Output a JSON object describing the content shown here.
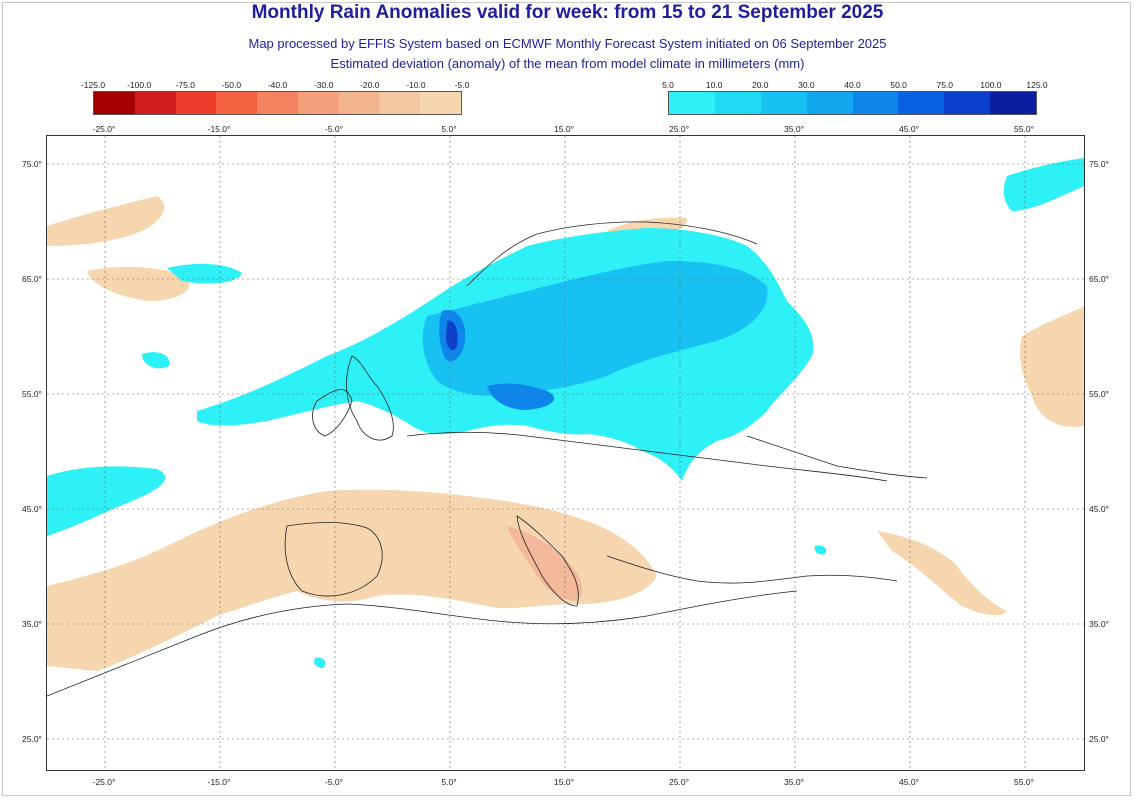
{
  "title": "Monthly Rain Anomalies valid for week: from 15 to 21 September 2025",
  "subtitle1": "Map processed by EFFIS System based on ECMWF Monthly Forecast System initiated on 06 September 2025",
  "subtitle2": "Estimated deviation (anomaly) of the mean from model climate in millimeters (mm)",
  "legend_negative": {
    "labels": [
      "-125.0",
      "-100.0",
      "-75.0",
      "-50.0",
      "-40.0",
      "-30.0",
      "-20.0",
      "-10.0",
      "-5.0"
    ],
    "colors": [
      "#a50000",
      "#d21b1b",
      "#ef3c2d",
      "#f4613f",
      "#f4835f",
      "#f3a07b",
      "#f2b48d",
      "#f3c79f",
      "#f6d6ae"
    ]
  },
  "legend_positive": {
    "labels": [
      "5.0",
      "10.0",
      "20.0",
      "30.0",
      "40.0",
      "50.0",
      "75.0",
      "100.0",
      "125.0"
    ],
    "colors": [
      "#2ef0f7",
      "#1edaf3",
      "#17c2f2",
      "#12a6ef",
      "#0d85eb",
      "#0a60e3",
      "#0a3fcc",
      "#0a1fa0"
    ]
  },
  "map_colors": {
    "dry": "#f6d6ae",
    "dry_strong": "#f3b99a",
    "wet": "#2ef0f7",
    "wet_mid": "#17c2f2",
    "wet_strong": "#0d85eb",
    "wet_max": "#0a3fcc",
    "land_line": "#222222",
    "grid": "#666666"
  },
  "axes": {
    "top_lon_labels": [
      "-25.0°",
      "-15.0°",
      "-5.0°",
      "5.0°",
      "15.0°",
      "25.0°",
      "35.0°",
      "45.0°",
      "55.0°"
    ],
    "bottom_lon_labels": [
      "-25.0°",
      "-15.0°",
      "-5.0°",
      "5.0°",
      "15.0°",
      "25.0°",
      "35.0°",
      "45.0°",
      "55.0°"
    ],
    "lat_labels": [
      "75.0°",
      "65.0°",
      "55.0°",
      "45.0°",
      "35.0°",
      "25.0°"
    ]
  }
}
